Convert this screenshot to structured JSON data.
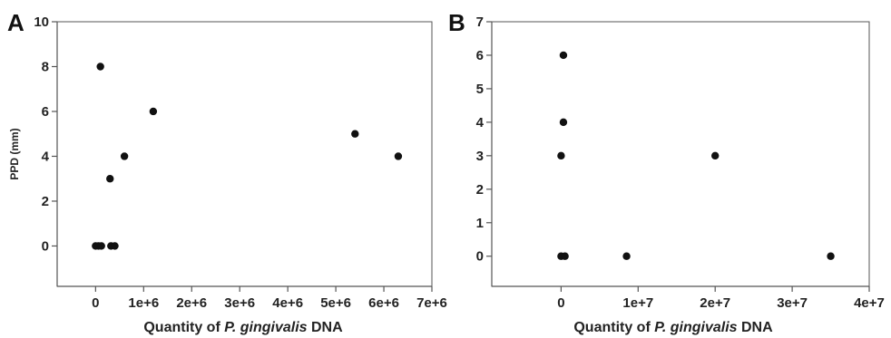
{
  "chart_data": [
    {
      "type": "scatter",
      "panel_label": "A",
      "xlabel_prefix": "Quantity of ",
      "xlabel_italic": "P. gingivalis",
      "xlabel_suffix": " DNA",
      "ylabel": "PPD (mm)",
      "xlim": [
        -800000,
        7000000
      ],
      "ylim": [
        -1.8,
        10
      ],
      "x_ticks": [
        0,
        1000000,
        2000000,
        3000000,
        4000000,
        5000000,
        6000000,
        7000000
      ],
      "x_tick_labels": [
        "0",
        "1e+6",
        "2e+6",
        "3e+6",
        "4e+6",
        "5e+6",
        "6e+6",
        "7e+6"
      ],
      "y_ticks": [
        0,
        2,
        4,
        6,
        8,
        10
      ],
      "y_tick_labels": [
        "0",
        "2",
        "4",
        "6",
        "8",
        "10"
      ],
      "points": [
        {
          "x": 0,
          "y": 0
        },
        {
          "x": 60000,
          "y": 0
        },
        {
          "x": 120000,
          "y": 0
        },
        {
          "x": 100000,
          "y": 8
        },
        {
          "x": 300000,
          "y": 3
        },
        {
          "x": 320000,
          "y": 0
        },
        {
          "x": 400000,
          "y": 0
        },
        {
          "x": 600000,
          "y": 4
        },
        {
          "x": 1200000,
          "y": 6
        },
        {
          "x": 5400000,
          "y": 5
        },
        {
          "x": 6300000,
          "y": 4
        }
      ]
    },
    {
      "type": "scatter",
      "panel_label": "B",
      "xlabel_prefix": "Quantity of ",
      "xlabel_italic": "P. gingivalis",
      "xlabel_suffix": " DNA",
      "ylabel": "",
      "xlim": [
        -9000000,
        40000000
      ],
      "ylim": [
        -0.9,
        7
      ],
      "x_ticks": [
        0,
        10000000,
        20000000,
        30000000,
        40000000
      ],
      "x_tick_labels": [
        "0",
        "1e+7",
        "2e+7",
        "3e+7",
        "4e+7"
      ],
      "y_ticks": [
        0,
        1,
        2,
        3,
        4,
        5,
        6,
        7
      ],
      "y_tick_labels": [
        "0",
        "1",
        "2",
        "3",
        "4",
        "5",
        "6",
        "7"
      ],
      "points": [
        {
          "x": 0,
          "y": 0
        },
        {
          "x": 500000,
          "y": 0
        },
        {
          "x": 0,
          "y": 3
        },
        {
          "x": 300000,
          "y": 4
        },
        {
          "x": 300000,
          "y": 6
        },
        {
          "x": 8500000,
          "y": 0
        },
        {
          "x": 20000000,
          "y": 3
        },
        {
          "x": 35000000,
          "y": 0
        }
      ]
    }
  ]
}
